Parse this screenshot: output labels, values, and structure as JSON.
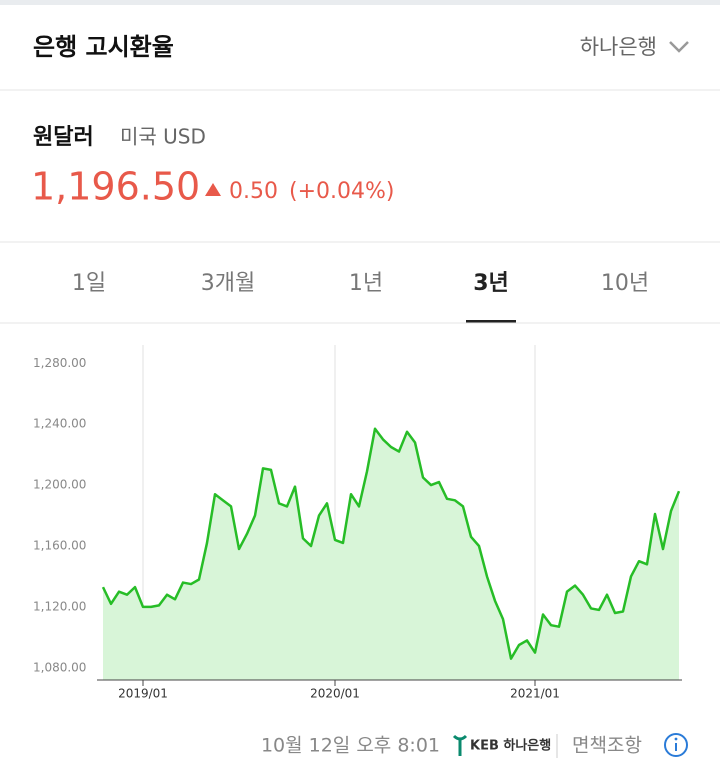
{
  "header": {
    "title": "은행 고시환율",
    "bank": "하나은행"
  },
  "currency": {
    "name": "원달러",
    "code": "미국 USD",
    "rate": "1,196.50",
    "change": "0.50",
    "change_percent": "(+0.04%)"
  },
  "tabs": {
    "items": [
      "1일",
      "3개월",
      "1년",
      "3년",
      "10년"
    ],
    "selected": 3
  },
  "chart_data": {
    "type": "area",
    "categories": [
      null,
      null,
      null,
      null,
      null,
      "2019/01",
      null,
      null,
      null,
      null,
      null,
      null,
      null,
      null,
      null,
      null,
      null,
      null,
      null,
      null,
      null,
      null,
      null,
      null,
      null,
      null,
      null,
      null,
      null,
      "2020/01",
      null,
      null,
      null,
      null,
      null,
      null,
      null,
      null,
      null,
      null,
      null,
      null,
      null,
      null,
      null,
      null,
      null,
      null,
      null,
      null,
      null,
      null,
      null,
      null,
      "2021/01",
      null,
      null,
      null,
      null,
      null,
      null,
      null,
      null,
      null,
      null,
      null,
      null,
      null,
      null,
      null,
      null,
      null,
      null
    ],
    "values": [
      1133,
      1122,
      1130,
      1128,
      1133,
      1120,
      1120,
      1121,
      1128,
      1125,
      1136,
      1135,
      1138,
      1162,
      1194,
      1190,
      1186,
      1158,
      1168,
      1180,
      1211,
      1210,
      1188,
      1186,
      1199,
      1165,
      1160,
      1180,
      1188,
      1164,
      1162,
      1194,
      1186,
      1209,
      1237,
      1230,
      1225,
      1222,
      1235,
      1228,
      1205,
      1200,
      1202,
      1191,
      1190,
      1186,
      1166,
      1160,
      1140,
      1124,
      1112,
      1086,
      1095,
      1098,
      1090,
      1115,
      1108,
      1107,
      1130,
      1134,
      1128,
      1119,
      1118,
      1128,
      1116,
      1117,
      1140,
      1150,
      1148,
      1181,
      1158,
      1183,
      1196
    ],
    "color": "#27bd27",
    "fill": "#d8f5d8",
    "ylim": [
      1072,
      1292
    ],
    "yticks": [
      {
        "value": 1080,
        "label": "1,080.00"
      },
      {
        "value": 1120,
        "label": "1,120.00"
      },
      {
        "value": 1160,
        "label": "1,160.00"
      },
      {
        "value": 1200,
        "label": "1,200.00"
      },
      {
        "value": 1240,
        "label": "1,240.00"
      },
      {
        "value": 1280,
        "label": "1,280.00"
      }
    ],
    "grid": true
  },
  "footer": {
    "timestamp": "10월 12일 오후 8:01",
    "logo": "KEB 하나은행",
    "disclaimer": "면책조항"
  }
}
